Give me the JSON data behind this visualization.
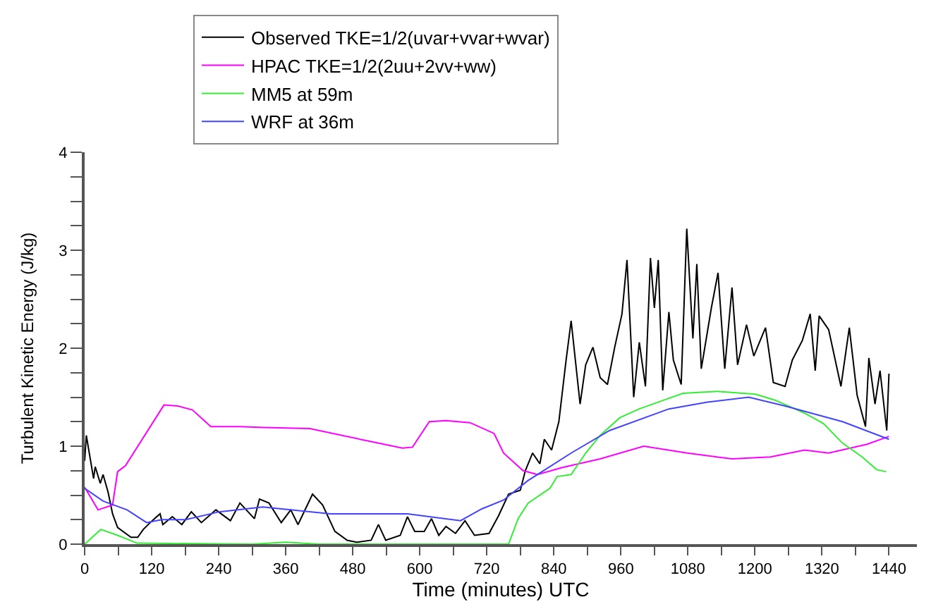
{
  "chart_data": {
    "type": "line",
    "xlabel": "Time (minutes) UTC",
    "ylabel": "Turbulent Kinetic Energy (J/kg)",
    "xlim": [
      0,
      1490
    ],
    "ylim": [
      0,
      4
    ],
    "xticks": [
      0,
      {
        "value": 60,
        "label": null
      },
      120,
      {
        "value": 180,
        "label": null
      },
      240,
      {
        "value": 300,
        "label": null
      },
      360,
      {
        "value": 420,
        "label": null
      },
      480,
      {
        "value": 540,
        "label": null
      },
      600,
      {
        "value": 660,
        "label": null
      },
      720,
      {
        "value": 780,
        "label": null
      },
      840,
      {
        "value": 900,
        "label": null
      },
      960,
      {
        "value": 1020,
        "label": null
      },
      1080,
      {
        "value": 1140,
        "label": null
      },
      1200,
      {
        "value": 1260,
        "label": null
      },
      1320,
      {
        "value": 1380,
        "label": null
      },
      1440
    ],
    "yticks": [
      0,
      {
        "value": 0.25,
        "label": null
      },
      {
        "value": 0.5,
        "label": null
      },
      {
        "value": 0.75,
        "label": null
      },
      1,
      {
        "value": 1.25,
        "label": null
      },
      {
        "value": 1.5,
        "label": null
      },
      {
        "value": 1.75,
        "label": null
      },
      2,
      {
        "value": 2.25,
        "label": null
      },
      {
        "value": 2.5,
        "label": null
      },
      {
        "value": 2.75,
        "label": null
      },
      3,
      {
        "value": 3.25,
        "label": null
      },
      {
        "value": 3.5,
        "label": null
      },
      {
        "value": 3.75,
        "label": null
      },
      4
    ],
    "legend": "top",
    "marker": "none",
    "line_style": "solid",
    "series": [
      {
        "name": "Observed TKE=1/2(uvar+vvar+wvar)",
        "color": "#000000",
        "x": [
          0,
          3,
          16,
          19,
          28,
          33,
          42,
          50,
          59,
          83,
          95,
          105,
          121,
          135,
          140,
          157,
          174,
          191,
          209,
          235,
          261,
          278,
          304,
          313,
          330,
          352,
          369,
          382,
          408,
          426,
          448,
          470,
          487,
          513,
          526,
          539,
          565,
          578,
          591,
          608,
          621,
          634,
          647,
          664,
          681,
          698,
          724,
          741,
          759,
          780,
          789,
          802,
          815,
          823,
          836,
          849,
          862,
          871,
          887,
          897,
          910,
          923,
          936,
          949,
          962,
          971,
          983,
          993,
          1004,
          1013,
          1020,
          1027,
          1035,
          1046,
          1054,
          1068,
          1078,
          1089,
          1096,
          1104,
          1122,
          1134,
          1146,
          1159,
          1169,
          1185,
          1198,
          1211,
          1219,
          1233,
          1254,
          1267,
          1285,
          1299,
          1308,
          1315,
          1332,
          1354,
          1369,
          1383,
          1398,
          1404,
          1415,
          1424,
          1436,
          1440
        ],
        "values": [
          0.85,
          1.11,
          0.67,
          0.79,
          0.62,
          0.71,
          0.53,
          0.31,
          0.17,
          0.07,
          0.07,
          0.15,
          0.24,
          0.31,
          0.2,
          0.28,
          0.2,
          0.33,
          0.22,
          0.35,
          0.24,
          0.42,
          0.26,
          0.46,
          0.42,
          0.22,
          0.35,
          0.2,
          0.51,
          0.4,
          0.13,
          0.04,
          0.02,
          0.04,
          0.2,
          0.04,
          0.09,
          0.28,
          0.13,
          0.13,
          0.26,
          0.09,
          0.18,
          0.11,
          0.24,
          0.09,
          0.11,
          0.29,
          0.51,
          0.55,
          0.75,
          0.93,
          0.82,
          1.07,
          0.96,
          1.25,
          1.88,
          2.28,
          1.43,
          1.83,
          2.01,
          1.7,
          1.63,
          2.01,
          2.35,
          2.9,
          1.5,
          2.06,
          1.61,
          2.92,
          2.41,
          2.9,
          1.57,
          2.37,
          1.88,
          1.63,
          3.22,
          2.1,
          2.86,
          1.79,
          2.41,
          2.77,
          1.79,
          2.62,
          1.83,
          2.24,
          1.92,
          2.1,
          2.21,
          1.65,
          1.61,
          1.88,
          2.08,
          2.35,
          1.77,
          2.33,
          2.19,
          1.61,
          2.21,
          1.52,
          1.2,
          1.9,
          1.43,
          1.77,
          1.16,
          1.74
        ]
      },
      {
        "name": "HPAC TKE=1/2(2uu+2vv+ww)",
        "color": "#ff00ff",
        "x": [
          0,
          24,
          50,
          59,
          73,
          142,
          167,
          193,
          226,
          278,
          321,
          403,
          510,
          569,
          587,
          617,
          647,
          690,
          733,
          750,
          785,
          811,
          854,
          923,
          1001,
          1079,
          1159,
          1228,
          1289,
          1332,
          1401,
          1440
        ],
        "values": [
          0.58,
          0.35,
          0.4,
          0.74,
          0.8,
          1.42,
          1.41,
          1.37,
          1.2,
          1.2,
          1.19,
          1.18,
          1.05,
          0.98,
          0.99,
          1.25,
          1.26,
          1.24,
          1.13,
          0.93,
          0.75,
          0.71,
          0.78,
          0.87,
          1.0,
          0.93,
          0.87,
          0.89,
          0.96,
          0.93,
          1.02,
          1.1
        ]
      },
      {
        "name": "MM5 at 59m",
        "color": "#33ee33",
        "x": [
          0,
          29,
          59,
          94,
          300,
          360,
          420,
          759,
          776,
          794,
          833,
          846,
          871,
          897,
          923,
          958,
          993,
          1037,
          1071,
          1132,
          1201,
          1236,
          1288,
          1323,
          1357,
          1392,
          1418,
          1435
        ],
        "values": [
          0,
          0.15,
          0.09,
          0.01,
          0,
          0.02,
          0,
          0,
          0.26,
          0.42,
          0.57,
          0.69,
          0.71,
          0.93,
          1.11,
          1.29,
          1.38,
          1.47,
          1.54,
          1.56,
          1.53,
          1.47,
          1.34,
          1.23,
          1.03,
          0.89,
          0.76,
          0.74
        ]
      },
      {
        "name": "WRF at 36m",
        "color": "#4444ff",
        "x": [
          0,
          33,
          76,
          111,
          138,
          181,
          241,
          319,
          353,
          440,
          578,
          673,
          711,
          750,
          794,
          871,
          940,
          1046,
          1115,
          1189,
          1254,
          1357,
          1440
        ],
        "values": [
          0.57,
          0.44,
          0.35,
          0.22,
          0.25,
          0.25,
          0.33,
          0.38,
          0.36,
          0.31,
          0.31,
          0.24,
          0.36,
          0.45,
          0.65,
          0.93,
          1.16,
          1.38,
          1.45,
          1.5,
          1.41,
          1.25,
          1.07
        ]
      }
    ]
  }
}
